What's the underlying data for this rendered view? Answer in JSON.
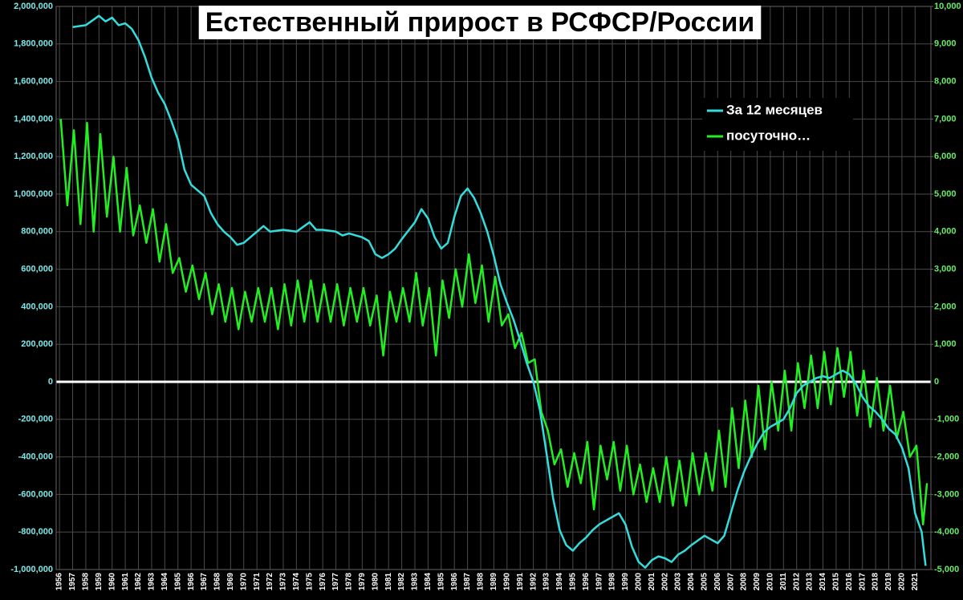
{
  "chart_data": {
    "type": "line",
    "title": "Естественный прирост в РСФСР/России",
    "xlim": [
      1955.75,
      2022.2
    ],
    "xticks": [
      1956,
      1957,
      1958,
      1959,
      1960,
      1961,
      1962,
      1963,
      1964,
      1965,
      1966,
      1967,
      1968,
      1969,
      1970,
      1971,
      1972,
      1973,
      1974,
      1975,
      1976,
      1977,
      1978,
      1979,
      1980,
      1981,
      1982,
      1983,
      1984,
      1985,
      1986,
      1987,
      1988,
      1989,
      1990,
      1991,
      1992,
      1993,
      1994,
      1995,
      1996,
      1997,
      1998,
      1999,
      2000,
      2001,
      2002,
      2003,
      2004,
      2005,
      2006,
      2007,
      2008,
      2009,
      2010,
      2011,
      2012,
      2013,
      2014,
      2015,
      2016,
      2017,
      2018,
      2019,
      2020,
      2021
    ],
    "ylim": [
      -1000000,
      2000000
    ],
    "yticks": [
      {
        "value": -1000000,
        "label": "-1,000,000"
      },
      {
        "value": -800000,
        "label": "-800,000"
      },
      {
        "value": -600000,
        "label": "-600,000"
      },
      {
        "value": -400000,
        "label": "-400,000"
      },
      {
        "value": -200000,
        "label": "-200,000"
      },
      0,
      {
        "value": 200000,
        "label": "200,000"
      },
      {
        "value": 400000,
        "label": "400,000"
      },
      {
        "value": 600000,
        "label": "600,000"
      },
      {
        "value": 800000,
        "label": "800,000"
      },
      {
        "value": 1000000,
        "label": "1,000,000"
      },
      {
        "value": 1200000,
        "label": "1,200,000"
      },
      {
        "value": 1400000,
        "label": "1,400,000"
      },
      {
        "value": 1600000,
        "label": "1,600,000"
      },
      {
        "value": 1800000,
        "label": "1,800,000"
      },
      {
        "value": 2000000,
        "label": "2,000,000"
      }
    ],
    "y2lim": [
      -5000,
      10000
    ],
    "y2ticks": [
      {
        "value": -5000,
        "label": "-5,000"
      },
      {
        "value": -4000,
        "label": "-4,000"
      },
      {
        "value": -3000,
        "label": "-3,000"
      },
      {
        "value": -2000,
        "label": "-2,000"
      },
      {
        "value": -1000,
        "label": "-1,000"
      },
      0,
      {
        "value": 1000,
        "label": "1,000"
      },
      {
        "value": 2000,
        "label": "2,000"
      },
      {
        "value": 3000,
        "label": "3,000"
      },
      {
        "value": 4000,
        "label": "4,000"
      },
      {
        "value": 5000,
        "label": "5,000"
      },
      {
        "value": 6000,
        "label": "6,000"
      },
      {
        "value": 7000,
        "label": "7,000"
      },
      {
        "value": 8000,
        "label": "8,000"
      },
      {
        "value": 9000,
        "label": "9,000"
      },
      {
        "value": 10000,
        "label": "10,000"
      }
    ],
    "grid": true,
    "legend": "upper right",
    "series": [
      {
        "name": "За 12 месяцев",
        "color": "#33dddd",
        "x": [
          1957,
          1958,
          1959,
          1959.5,
          1960,
          1960.5,
          1961,
          1961.5,
          1962,
          1962.5,
          1963,
          1963.5,
          1964,
          1964.5,
          1965,
          1965.5,
          1966,
          1966.5,
          1967,
          1967.5,
          1968,
          1968.5,
          1969,
          1969.5,
          1970,
          1970.5,
          1971,
          1971.5,
          1972,
          1973,
          1974,
          1975,
          1975.5,
          1976,
          1977,
          1977.5,
          1978,
          1979,
          1979.5,
          1980,
          1980.5,
          1981,
          1981.5,
          1982,
          1983,
          1983.5,
          1984,
          1984.5,
          1985,
          1985.5,
          1986,
          1986.5,
          1987,
          1987.5,
          1988,
          1988.5,
          1989,
          1989.5,
          1990,
          1990.5,
          1991,
          1991.5,
          1992,
          1992.5,
          1993,
          1993.5,
          1994,
          1994.5,
          1995,
          1995.5,
          1996,
          1996.5,
          1997,
          1998,
          1998.5,
          1999,
          1999.5,
          2000,
          2000.5,
          2001,
          2001.5,
          2002,
          2002.5,
          2003,
          2003.5,
          2004,
          2005,
          2005.5,
          2006,
          2006.5,
          2007,
          2007.5,
          2008,
          2008.5,
          2009,
          2009.5,
          2010,
          2010.5,
          2011,
          2011.5,
          2012,
          2012.5,
          2013,
          2013.5,
          2014,
          2014.5,
          2015,
          2015.5,
          2016,
          2016.5,
          2017,
          2017.5,
          2018,
          2018.5,
          2019,
          2019.5,
          2020,
          2020.5,
          2021,
          2021.5,
          2021.8
        ],
        "values": [
          1890000,
          1900000,
          1950000,
          1920000,
          1940000,
          1900000,
          1910000,
          1880000,
          1820000,
          1730000,
          1620000,
          1540000,
          1480000,
          1390000,
          1290000,
          1130000,
          1050000,
          1020000,
          990000,
          900000,
          840000,
          800000,
          770000,
          730000,
          740000,
          770000,
          800000,
          830000,
          800000,
          810000,
          800000,
          850000,
          810000,
          810000,
          800000,
          780000,
          790000,
          770000,
          750000,
          680000,
          660000,
          680000,
          710000,
          760000,
          850000,
          920000,
          870000,
          770000,
          710000,
          740000,
          880000,
          990000,
          1030000,
          980000,
          900000,
          800000,
          670000,
          520000,
          420000,
          330000,
          220000,
          100000,
          0,
          -150000,
          -380000,
          -620000,
          -790000,
          -870000,
          -900000,
          -860000,
          -830000,
          -790000,
          -760000,
          -720000,
          -700000,
          -760000,
          -880000,
          -960000,
          -990000,
          -950000,
          -930000,
          -940000,
          -960000,
          -920000,
          -900000,
          -870000,
          -820000,
          -840000,
          -860000,
          -820000,
          -700000,
          -580000,
          -480000,
          -400000,
          -330000,
          -270000,
          -240000,
          -220000,
          -200000,
          -140000,
          -60000,
          -20000,
          0,
          20000,
          30000,
          20000,
          40000,
          60000,
          40000,
          -10000,
          -80000,
          -130000,
          -160000,
          -200000,
          -250000,
          -280000,
          -350000,
          -460000,
          -700000,
          -800000,
          -980000
        ]
      },
      {
        "name": "посуточно…",
        "color": "#22ee22",
        "axis": "y2",
        "x": [
          1956.1,
          1956.6,
          1957.1,
          1957.6,
          1958.1,
          1958.6,
          1959.1,
          1959.6,
          1960.1,
          1960.6,
          1961.1,
          1961.6,
          1962.1,
          1962.6,
          1963.1,
          1963.6,
          1964.1,
          1964.6,
          1965.1,
          1965.6,
          1966.1,
          1966.6,
          1967.1,
          1967.6,
          1968.1,
          1968.6,
          1969.1,
          1969.6,
          1970.1,
          1970.6,
          1971.1,
          1971.6,
          1972.1,
          1972.6,
          1973.1,
          1973.6,
          1974.1,
          1974.6,
          1975.1,
          1975.6,
          1976.1,
          1976.6,
          1977.1,
          1977.6,
          1978.1,
          1978.6,
          1979.1,
          1979.6,
          1980.1,
          1980.6,
          1981.1,
          1981.6,
          1982.1,
          1982.6,
          1983.1,
          1983.6,
          1984.1,
          1984.6,
          1985.1,
          1985.6,
          1986.1,
          1986.6,
          1987.1,
          1987.6,
          1988.1,
          1988.6,
          1989.1,
          1989.6,
          1990.1,
          1990.6,
          1991.1,
          1991.6,
          1992.1,
          1992.6,
          1993.1,
          1993.6,
          1994.1,
          1994.6,
          1995.1,
          1995.6,
          1996.1,
          1996.6,
          1997.1,
          1997.6,
          1998.1,
          1998.6,
          1999.1,
          1999.6,
          2000.1,
          2000.6,
          2001.1,
          2001.6,
          2002.1,
          2002.6,
          2003.1,
          2003.6,
          2004.1,
          2004.6,
          2005.1,
          2005.6,
          2006.1,
          2006.6,
          2007.1,
          2007.6,
          2008.1,
          2008.6,
          2009.1,
          2009.6,
          2010.1,
          2010.6,
          2011.1,
          2011.6,
          2012.1,
          2012.6,
          2013.1,
          2013.6,
          2014.1,
          2014.6,
          2015.1,
          2015.6,
          2016.1,
          2016.6,
          2017.1,
          2017.6,
          2018.1,
          2018.6,
          2019.1,
          2019.6,
          2020.1,
          2020.6,
          2021.1,
          2021.6,
          2021.9
        ],
        "values": [
          7000,
          4700,
          6700,
          4200,
          6900,
          4000,
          6600,
          4400,
          6000,
          4000,
          5700,
          3900,
          4700,
          3700,
          4600,
          3200,
          4200,
          2900,
          3300,
          2400,
          3100,
          2200,
          2900,
          1800,
          2600,
          1600,
          2500,
          1400,
          2400,
          1600,
          2500,
          1600,
          2500,
          1400,
          2600,
          1500,
          2700,
          1600,
          2700,
          1600,
          2600,
          1600,
          2600,
          1500,
          2500,
          1600,
          2500,
          1500,
          2300,
          700,
          2400,
          1600,
          2500,
          1600,
          2900,
          1500,
          2500,
          700,
          2700,
          1700,
          3000,
          2000,
          3400,
          2100,
          3100,
          1600,
          2800,
          1500,
          1800,
          900,
          1300,
          500,
          600,
          -800,
          -1300,
          -2200,
          -1800,
          -2800,
          -1900,
          -2700,
          -1600,
          -3400,
          -1700,
          -2600,
          -1600,
          -2900,
          -1700,
          -3000,
          -2200,
          -3200,
          -2300,
          -3200,
          -2000,
          -3300,
          -2100,
          -3300,
          -1900,
          -3000,
          -1900,
          -2900,
          -1300,
          -2800,
          -700,
          -2300,
          -500,
          -2000,
          -100,
          -1800,
          0,
          -1300,
          300,
          -1300,
          500,
          -700,
          700,
          -700,
          800,
          -600,
          900,
          -400,
          800,
          -900,
          300,
          -1200,
          100,
          -1300,
          -100,
          -1500,
          -800,
          -2000,
          -1700,
          -3800,
          -2700
        ]
      }
    ]
  }
}
